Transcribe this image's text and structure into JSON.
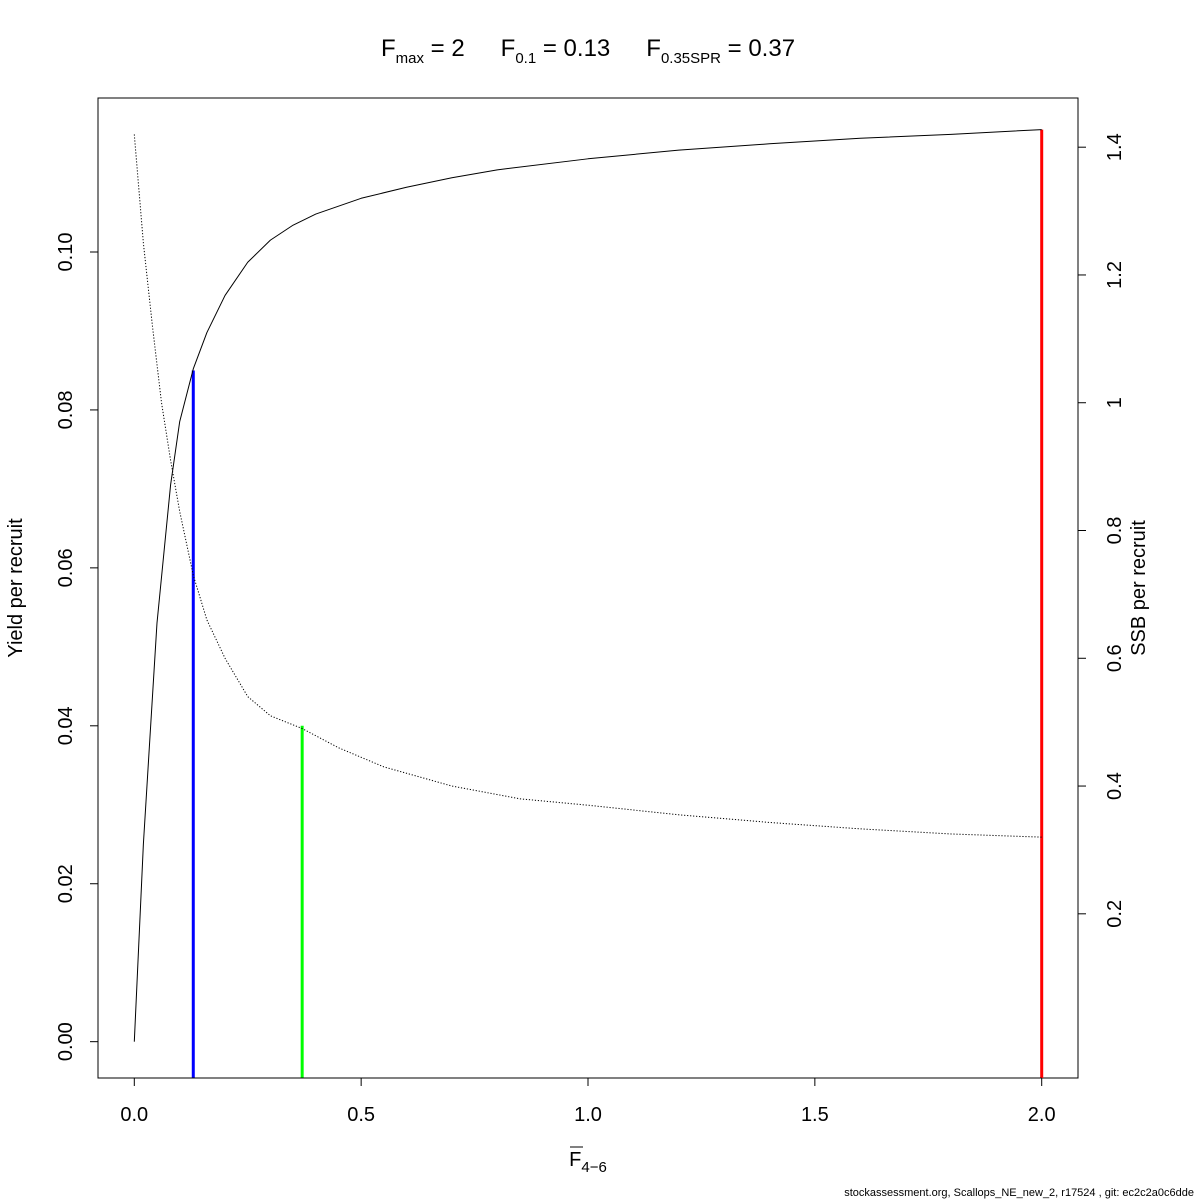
{
  "chart_data": {
    "type": "line",
    "title": {
      "parts": [
        {
          "base": "F",
          "sub": "max",
          "rest": " = 2"
        },
        {
          "base": "F",
          "sub": "0.1",
          "rest": " = 0.13"
        },
        {
          "base": "F",
          "sub": "0.35SPR",
          "rest": " = 0.37"
        }
      ]
    },
    "xlabel": {
      "base": "F",
      "sub": "4−6"
    },
    "ylabel": "Yield per recruit",
    "y2label": "SSB per recruit",
    "xlim": [
      -0.08,
      2.08
    ],
    "ylim": [
      -0.0046,
      0.1195
    ],
    "y2lim": [
      -0.057,
      1.477
    ],
    "x_ticks": [
      {
        "value": 0.0,
        "label": "0.0"
      },
      {
        "value": 0.5,
        "label": "0.5"
      },
      {
        "value": 1.0,
        "label": "1.0"
      },
      {
        "value": 1.5,
        "label": "1.5"
      },
      {
        "value": 2.0,
        "label": "2.0"
      }
    ],
    "y_ticks": [
      {
        "value": 0.0,
        "label": "0.00"
      },
      {
        "value": 0.02,
        "label": "0.02"
      },
      {
        "value": 0.04,
        "label": "0.04"
      },
      {
        "value": 0.06,
        "label": "0.06"
      },
      {
        "value": 0.08,
        "label": "0.08"
      },
      {
        "value": 0.1,
        "label": "0.10"
      }
    ],
    "y2_ticks": [
      {
        "value": 0.2,
        "label": "0.2"
      },
      {
        "value": 0.4,
        "label": "0.4"
      },
      {
        "value": 0.6,
        "label": "0.6"
      },
      {
        "value": 0.8,
        "label": "0.8"
      },
      {
        "value": 1.0,
        "label": "1"
      },
      {
        "value": 1.2,
        "label": "1.2"
      },
      {
        "value": 1.4,
        "label": "1.4"
      }
    ],
    "series": [
      {
        "axis": "left",
        "style": "solid",
        "color": "#000000",
        "x": [
          0.0,
          0.02,
          0.05,
          0.08,
          0.1,
          0.13,
          0.16,
          0.2,
          0.25,
          0.3,
          0.35,
          0.4,
          0.5,
          0.6,
          0.7,
          0.8,
          1.0,
          1.2,
          1.4,
          1.6,
          1.8,
          2.0
        ],
        "y": [
          0.0,
          0.025,
          0.053,
          0.0705,
          0.0785,
          0.0852,
          0.0898,
          0.0945,
          0.0987,
          0.1015,
          0.1034,
          0.1048,
          0.1068,
          0.1082,
          0.1094,
          0.1104,
          0.1118,
          0.1129,
          0.1137,
          0.1144,
          0.1149,
          0.1155
        ]
      },
      {
        "axis": "right",
        "style": "dotted",
        "color": "#000000",
        "x": [
          0.0,
          0.02,
          0.04,
          0.06,
          0.08,
          0.1,
          0.13,
          0.16,
          0.2,
          0.25,
          0.3,
          0.37,
          0.45,
          0.55,
          0.7,
          0.85,
          1.0,
          1.2,
          1.4,
          1.6,
          1.8,
          2.0
        ],
        "y": [
          1.42,
          1.25,
          1.12,
          1.0,
          0.91,
          0.83,
          0.73,
          0.66,
          0.6,
          0.54,
          0.51,
          0.49,
          0.46,
          0.43,
          0.4,
          0.38,
          0.37,
          0.355,
          0.343,
          0.333,
          0.325,
          0.32
        ]
      }
    ],
    "reference_lines": [
      {
        "name": "F0.1",
        "x": 0.13,
        "y_top": 0.085,
        "color": "#0000ff"
      },
      {
        "name": "F0.35SPR",
        "x": 0.37,
        "y_top": 0.04,
        "color": "#00ff00"
      },
      {
        "name": "Fmax",
        "x": 2.0,
        "y_top": 0.1155,
        "color": "#ff0000"
      }
    ]
  },
  "footer": "stockassessment.org, Scallops_NE_new_2, r17524 , git: ec2c2a0c6dde"
}
